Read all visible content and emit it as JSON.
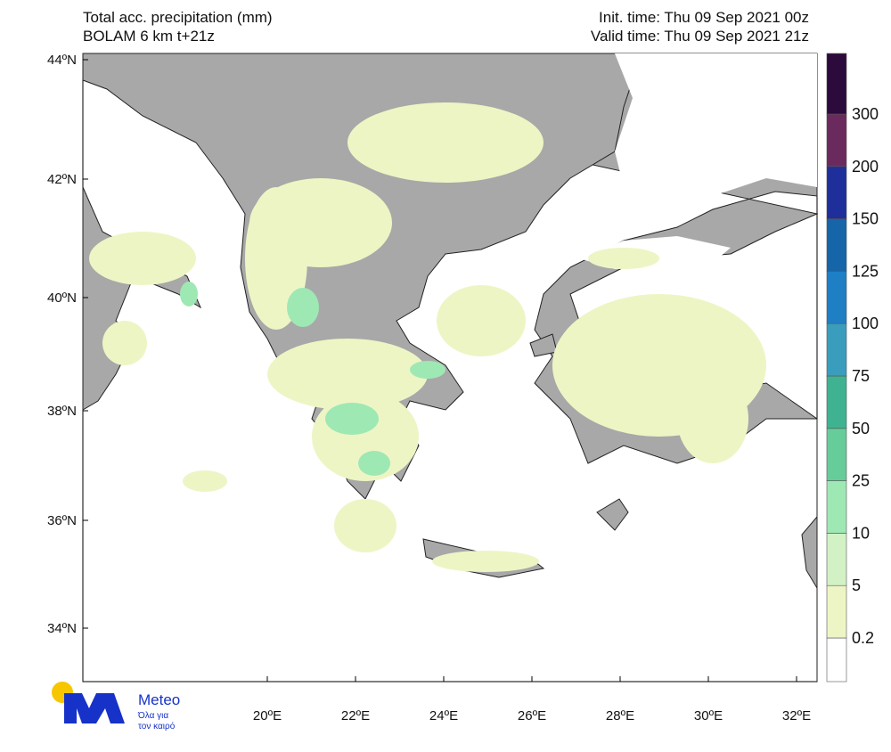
{
  "header": {
    "title": "Total acc. precipitation (mm)",
    "subtitle": "BOLAM 6 km t+21z",
    "init_time": "Init. time: Thu 09 Sep 2021 00z",
    "valid_time": "Valid time: Thu 09 Sep 2021 21z"
  },
  "map": {
    "lat_labels": [
      "44ºN",
      "42ºN",
      "40ºN",
      "38ºN",
      "36ºN",
      "34ºN"
    ],
    "lon_labels": [
      "20ºE",
      "22ºE",
      "24ºE",
      "26ºE",
      "28ºE",
      "30ºE",
      "32ºE"
    ]
  },
  "colorbar": {
    "levels": [
      0.2,
      5,
      10,
      25,
      50,
      75,
      100,
      125,
      150,
      200,
      300
    ],
    "colors": [
      "#ffffff",
      "#eef5c4",
      "#d2f2c6",
      "#9ee8b4",
      "#66cc99",
      "#3fb391",
      "#3a9dbd",
      "#1f7fc4",
      "#1565a8",
      "#1e2e9a",
      "#6b2a5e",
      "#2c0a3c"
    ]
  },
  "logo": {
    "name": "Meteo",
    "tagline_1": "Όλα για",
    "tagline_2": "τον καιρό"
  }
}
